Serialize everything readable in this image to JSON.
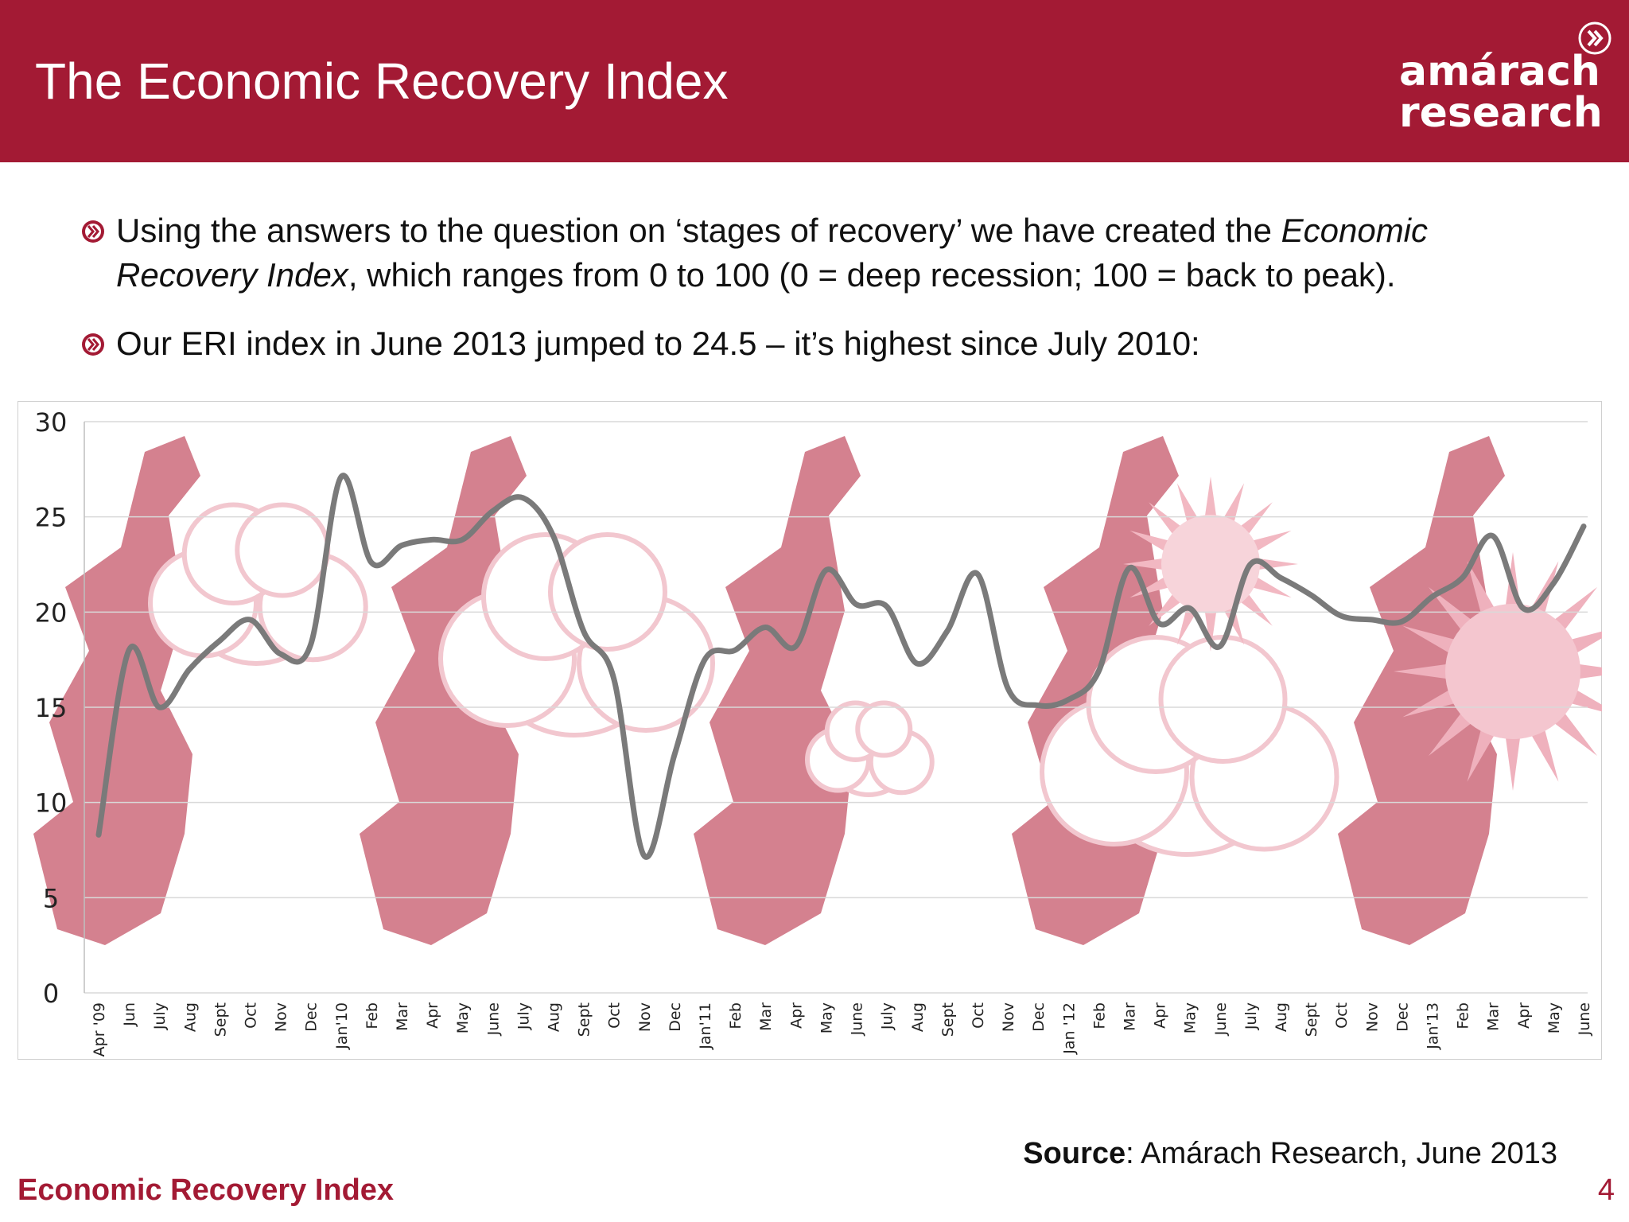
{
  "header": {
    "title": "The Economic Recovery Index",
    "logo_line1": "amárach",
    "logo_line2": "research",
    "logo_icon": "chevron-circle-icon"
  },
  "bullets": {
    "b1_pre": "Using the answers to the question on ‘stages of recovery’ we have created the ",
    "b1_em1": "Economic Recovery Index",
    "b1_post": ", which ranges from 0 to 100 (0 = deep recession; 100 = back to peak).",
    "b2": "Our ERI index in June 2013 jumped to 24.5 – it’s highest since July 2010:",
    "bullet_icon": "chevron-circle-icon"
  },
  "chart_data": {
    "type": "line",
    "title": "",
    "xlabel": "",
    "ylabel": "",
    "ylim": [
      0,
      30
    ],
    "yticks": [
      0,
      5,
      10,
      15,
      20,
      25,
      30
    ],
    "grid": true,
    "legend": "none",
    "background_image": "weather map illustrations of Ireland (rain, cloud, sun)",
    "categories": [
      "Apr '09",
      "Jun",
      "July",
      "Aug",
      "Sept",
      "Oct",
      "Nov",
      "Dec",
      "Jan'10",
      "Feb",
      "Mar",
      "Apr",
      "May",
      "June",
      "July",
      "Aug",
      "Sept",
      "Oct",
      "Nov",
      "Dec",
      "Jan'11",
      "Feb",
      "Mar",
      "Apr",
      "May",
      "June",
      "July",
      "Aug",
      "Sept",
      "Oct",
      "Nov",
      "Dec",
      "Jan '12",
      "Feb",
      "Mar",
      "Apr",
      "May",
      "June",
      "July",
      "Aug",
      "Sept",
      "Oct",
      "Nov",
      "Dec",
      "Jan'13",
      "Feb",
      "Mar",
      "Apr",
      "May",
      "June"
    ],
    "series": [
      {
        "values": [
          8.3,
          18.0,
          15.0,
          17.0,
          18.5,
          19.6,
          17.8,
          18.3,
          27.1,
          22.6,
          23.5,
          23.8,
          23.8,
          25.3,
          26.0,
          24.0,
          19.0,
          16.5,
          7.2,
          12.5,
          17.5,
          18.0,
          19.2,
          18.2,
          22.2,
          20.4,
          20.3,
          17.3,
          19.0,
          22.0,
          16.0,
          15.1,
          15.4,
          16.9,
          22.3,
          19.4,
          20.2,
          18.2,
          22.5,
          21.8,
          20.9,
          19.8,
          19.6,
          19.5,
          20.8,
          21.8,
          24.0,
          20.2,
          21.5,
          24.5
        ],
        "color": "#7a7a7a"
      }
    ],
    "colors": {
      "line": "#7a7a7a",
      "map": "#d4818f",
      "grid": "#d9d9d9"
    }
  },
  "footer": {
    "source_label": "Source",
    "source_text": ": Amárach Research, June 2013",
    "left": "Economic Recovery Index",
    "page": "4"
  }
}
